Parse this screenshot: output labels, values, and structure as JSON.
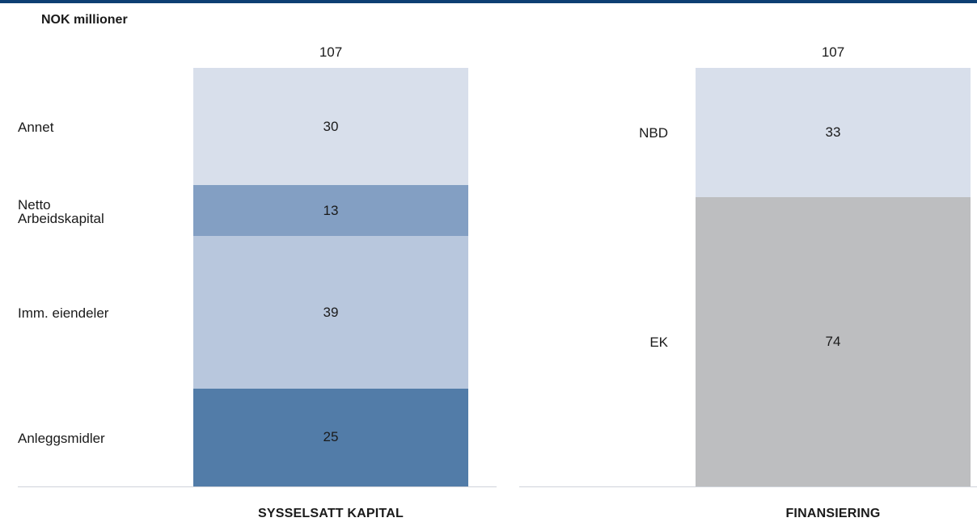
{
  "unit_label": "NOK millioner",
  "chart_data": [
    {
      "type": "bar",
      "stacked": true,
      "title": "",
      "xlabel": "SYSSELSATT KAPITAL",
      "total_label": "107",
      "ylim": [
        0,
        107
      ],
      "segments": [
        {
          "name": "Anleggsmidler",
          "label_lines": [
            "Anleggsmidler"
          ],
          "value": 25,
          "color": "#527ca8"
        },
        {
          "name": "Imm. eiendeler",
          "label_lines": [
            "Imm. eiendeler"
          ],
          "value": 39,
          "color": "#b8c7dd"
        },
        {
          "name": "Netto Arbeidskapital",
          "label_lines": [
            "Netto",
            "Arbeidskapital"
          ],
          "value": 13,
          "color": "#839fc3"
        },
        {
          "name": "Annet",
          "label_lines": [
            "Annet"
          ],
          "value": 30,
          "color": "#d8dfeb"
        }
      ]
    },
    {
      "type": "bar",
      "stacked": true,
      "title": "",
      "xlabel": "FINANSIERING",
      "total_label": "107",
      "ylim": [
        0,
        107
      ],
      "segments": [
        {
          "name": "EK",
          "label_lines": [
            "EK"
          ],
          "value": 74,
          "color": "#bdbec0"
        },
        {
          "name": "NBD",
          "label_lines": [
            "NBD"
          ],
          "value": 33,
          "color": "#d8dfeb"
        }
      ]
    }
  ]
}
